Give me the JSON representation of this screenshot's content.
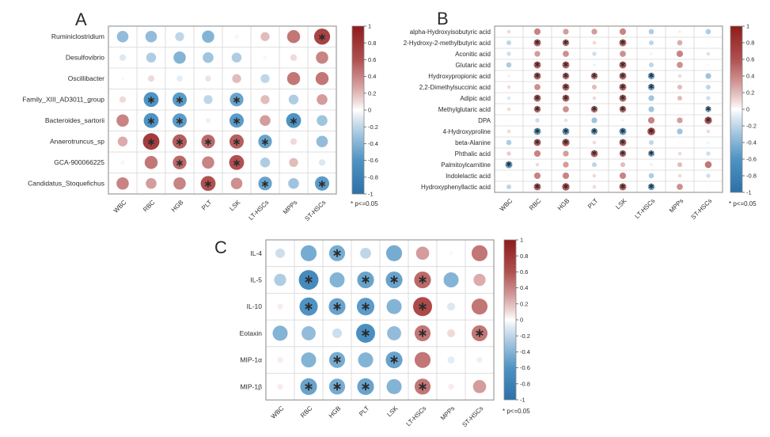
{
  "figure": {
    "background": "#ffffff",
    "significance_note": "* p<=0.05",
    "colorbar": {
      "ticks": [
        "1",
        "0.8",
        "0.6",
        "0.4",
        "0.2",
        "0",
        "-0.2",
        "-0.4",
        "-0.6",
        "-0.8",
        "-1"
      ],
      "range": [
        -1,
        1
      ],
      "positive_max_color": "#8e1b1b",
      "zero_color": "#ffffff",
      "negative_max_color": "#2c70a9"
    }
  },
  "chart_data": [
    {
      "id": "A",
      "panel_label": "A",
      "type": "correlation-bubble-matrix",
      "legend_note": "* p<=0.05",
      "columns": [
        "WBC",
        "RBC",
        "HGB",
        "PLT",
        "LSK",
        "LT-HSCs",
        "MPPs",
        "ST-HSCs"
      ],
      "rows": [
        "Ruminiclostridium",
        "Desulfovibrio",
        "Oscillibacter",
        "Family_XIII_AD3011_group",
        "Bacteroides_sartorii",
        "Anaerotruncus_sp",
        "GCA-900066225",
        "Candidatus_Stoquefichus"
      ],
      "values": [
        [
          -0.35,
          -0.35,
          -0.2,
          -0.4,
          -0.03,
          0.2,
          0.45,
          0.7
        ],
        [
          -0.1,
          -0.25,
          -0.4,
          -0.3,
          -0.25,
          -0.03,
          0.1,
          0.4
        ],
        [
          0.02,
          0.1,
          -0.08,
          0.08,
          0.2,
          -0.2,
          0.45,
          0.45
        ],
        [
          0.1,
          -0.6,
          -0.55,
          -0.2,
          -0.5,
          0.2,
          -0.25,
          0.3
        ],
        [
          0.4,
          -0.6,
          -0.55,
          0.05,
          -0.55,
          0.3,
          -0.6,
          -0.3
        ],
        [
          0.25,
          0.75,
          0.55,
          0.5,
          0.55,
          -0.5,
          0.1,
          -0.35
        ],
        [
          0.03,
          0.45,
          0.5,
          0.4,
          0.6,
          -0.25,
          0.2,
          -0.1
        ],
        [
          0.4,
          0.3,
          0.4,
          0.6,
          0.35,
          -0.5,
          -0.3,
          -0.55
        ]
      ],
      "significant": [
        [
          0,
          0,
          0,
          0,
          0,
          0,
          0,
          1
        ],
        [
          0,
          0,
          0,
          0,
          0,
          0,
          0,
          0
        ],
        [
          0,
          0,
          0,
          0,
          0,
          0,
          0,
          0
        ],
        [
          0,
          1,
          1,
          0,
          1,
          0,
          0,
          0
        ],
        [
          0,
          1,
          1,
          0,
          1,
          0,
          1,
          0
        ],
        [
          0,
          1,
          1,
          1,
          1,
          1,
          0,
          0
        ],
        [
          0,
          0,
          1,
          0,
          1,
          0,
          0,
          0
        ],
        [
          0,
          0,
          0,
          1,
          0,
          1,
          0,
          1
        ]
      ]
    },
    {
      "id": "B",
      "panel_label": "B",
      "type": "correlation-bubble-matrix",
      "legend_note": "* p<=0.05",
      "columns": [
        "WBC",
        "RBC",
        "HGB",
        "PLT",
        "LSK",
        "LT-HSCs",
        "MPPs",
        "ST-HSCs"
      ],
      "rows": [
        "alpha-Hydroxyisobutyric acid",
        "2-Hydroxy-2-methylbutyric acid",
        "Aconitic acid",
        "Glutaric acid",
        "Hydroxypropionic acid",
        "2,2-Dimethylsuccinic acid",
        "Adipic acid",
        "Methylglutaric acid",
        "DPA",
        "4-Hydroxyproline",
        "beta-Alanine",
        "Phthalic acid",
        "Palmitoylcarnitine",
        "Indolelactic acid",
        "Hydroxyphenyllactic acid"
      ],
      "values": [
        [
          0.1,
          0.4,
          0.3,
          0.3,
          0.4,
          -0.25,
          0.05,
          -0.25
        ],
        [
          -0.2,
          0.5,
          0.45,
          0.1,
          0.5,
          -0.2,
          0.25,
          0.02
        ],
        [
          -0.15,
          0.3,
          0.35,
          -0.15,
          0.35,
          -0.05,
          0.4,
          0.1
        ],
        [
          -0.25,
          0.5,
          0.5,
          0.05,
          0.5,
          -0.2,
          0.35,
          0.03
        ],
        [
          0.05,
          0.5,
          0.45,
          0.45,
          0.5,
          -0.45,
          0.1,
          -0.3
        ],
        [
          0.1,
          0.35,
          0.5,
          0.2,
          0.5,
          -0.45,
          0.2,
          -0.2
        ],
        [
          -0.1,
          0.5,
          0.5,
          0.1,
          0.5,
          -0.3,
          0.2,
          -0.15
        ],
        [
          0.1,
          0.45,
          0.35,
          0.45,
          0.45,
          -0.3,
          0.02,
          -0.35
        ],
        [
          0.02,
          -0.15,
          -0.1,
          -0.3,
          -0.05,
          0.4,
          0.3,
          0.55
        ],
        [
          0.1,
          -0.5,
          -0.5,
          -0.45,
          -0.5,
          0.6,
          -0.3,
          0.1
        ],
        [
          -0.25,
          0.5,
          0.55,
          0.1,
          0.5,
          -0.2,
          0.02,
          -0.05
        ],
        [
          0.15,
          0.4,
          0.3,
          0.5,
          0.45,
          -0.4,
          0.1,
          -0.15
        ],
        [
          -0.5,
          0.1,
          0.3,
          -0.2,
          0.2,
          0.05,
          0.2,
          0.45
        ],
        [
          0.02,
          0.4,
          0.4,
          0.1,
          0.4,
          -0.25,
          0.1,
          -0.15
        ],
        [
          -0.2,
          0.5,
          0.55,
          0.1,
          0.5,
          -0.45,
          0.35,
          0.02
        ]
      ],
      "significant": [
        [
          0,
          0,
          0,
          0,
          0,
          0,
          0,
          0
        ],
        [
          0,
          1,
          1,
          0,
          1,
          0,
          0,
          0
        ],
        [
          0,
          0,
          0,
          0,
          0,
          0,
          0,
          0
        ],
        [
          0,
          1,
          1,
          0,
          1,
          0,
          0,
          0
        ],
        [
          0,
          1,
          1,
          1,
          1,
          1,
          0,
          0
        ],
        [
          0,
          0,
          1,
          0,
          1,
          1,
          0,
          0
        ],
        [
          0,
          1,
          1,
          0,
          1,
          0,
          0,
          0
        ],
        [
          0,
          1,
          0,
          1,
          1,
          0,
          0,
          1
        ],
        [
          0,
          0,
          0,
          0,
          0,
          0,
          0,
          1
        ],
        [
          0,
          1,
          1,
          1,
          1,
          1,
          0,
          0
        ],
        [
          0,
          1,
          1,
          0,
          1,
          0,
          0,
          0
        ],
        [
          0,
          0,
          0,
          1,
          1,
          1,
          0,
          0
        ],
        [
          1,
          0,
          0,
          0,
          0,
          0,
          0,
          0
        ],
        [
          0,
          0,
          0,
          0,
          0,
          0,
          0,
          0
        ],
        [
          0,
          1,
          1,
          0,
          1,
          1,
          0,
          0
        ]
      ]
    },
    {
      "id": "C",
      "panel_label": "C",
      "type": "correlation-bubble-matrix",
      "legend_note": "* p<=0.05",
      "columns": [
        "WBC",
        "RBC",
        "HGB",
        "PLT",
        "LSK",
        "LT-HSCs",
        "MPPs",
        "ST-HSCs"
      ],
      "rows": [
        "IL-4",
        "IL-5",
        "IL-10",
        "Eotaxin",
        "MIP-1α",
        "MIP-1β"
      ],
      "values": [
        [
          -0.15,
          -0.45,
          -0.45,
          -0.2,
          -0.45,
          0.3,
          0.02,
          0.45
        ],
        [
          -0.25,
          -0.7,
          -0.4,
          -0.5,
          -0.5,
          0.5,
          -0.4,
          0.25
        ],
        [
          0.05,
          -0.6,
          -0.5,
          -0.55,
          -0.4,
          0.65,
          -0.1,
          0.45
        ],
        [
          -0.4,
          -0.35,
          -0.15,
          -0.65,
          -0.35,
          0.45,
          0.1,
          0.45
        ],
        [
          0.05,
          -0.4,
          -0.45,
          -0.4,
          -0.5,
          0.45,
          -0.08,
          0.05
        ],
        [
          0.05,
          -0.5,
          -0.45,
          -0.5,
          -0.4,
          0.45,
          0.05,
          0.3
        ]
      ],
      "significant": [
        [
          0,
          0,
          1,
          0,
          0,
          0,
          0,
          0
        ],
        [
          0,
          1,
          0,
          1,
          1,
          1,
          0,
          0
        ],
        [
          0,
          1,
          1,
          1,
          0,
          1,
          0,
          0
        ],
        [
          0,
          0,
          0,
          1,
          0,
          1,
          0,
          1
        ],
        [
          0,
          0,
          1,
          0,
          1,
          0,
          0,
          0
        ],
        [
          0,
          1,
          1,
          1,
          0,
          1,
          0,
          0
        ]
      ]
    }
  ]
}
